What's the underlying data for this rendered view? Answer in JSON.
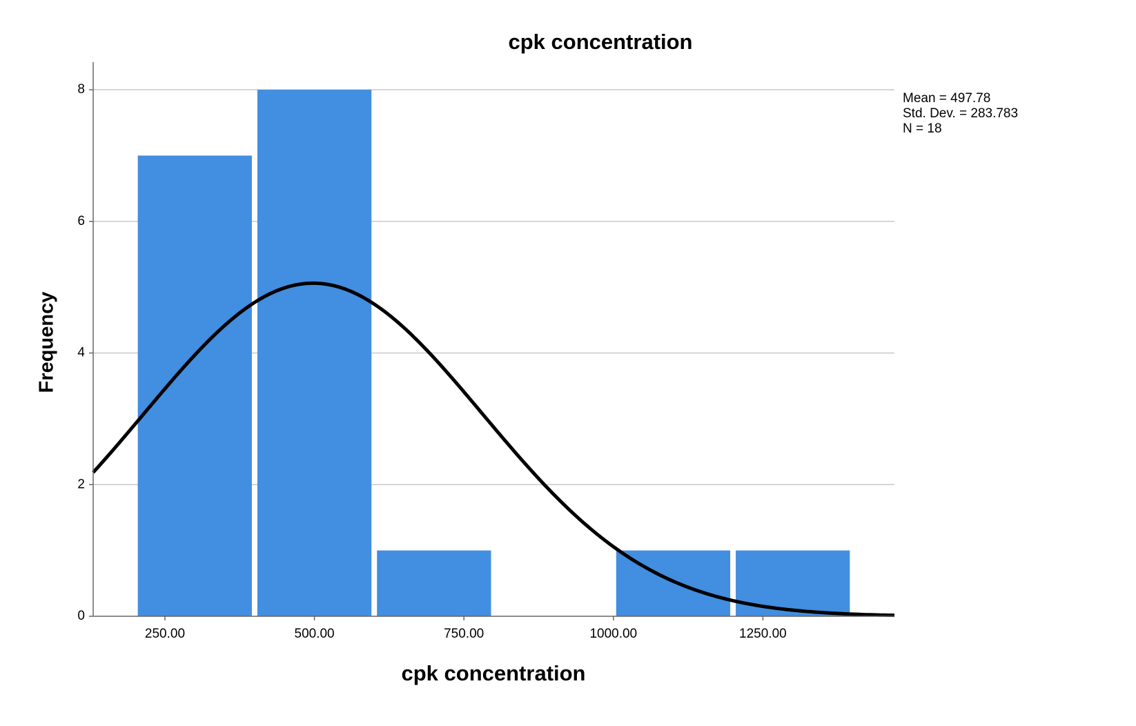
{
  "chart_data": {
    "type": "histogram",
    "title": "cpk concentration",
    "x_label": "cpk concentration",
    "y_label": "Frequency",
    "bins": [
      200,
      400,
      600,
      800,
      1000,
      1200,
      1400
    ],
    "values": [
      7,
      8,
      1,
      0,
      1,
      1
    ],
    "color": "#428ee0",
    "xlim": [
      130,
      1470
    ],
    "xticks": [
      {
        "value": 250,
        "label": "250.00"
      },
      {
        "value": 500,
        "label": "500.00"
      },
      {
        "value": 750,
        "label": "750.00"
      },
      {
        "value": 1000,
        "label": "1000.00"
      },
      {
        "value": 1250,
        "label": "1250.00"
      }
    ],
    "ylim": [
      0,
      8.42
    ],
    "yticks": [
      0,
      2,
      4,
      6,
      8
    ],
    "grid": true,
    "normal_curve": {
      "mean": 497.78,
      "std_dev": 283.783,
      "n": 18,
      "color": "#000000"
    },
    "annotations": [
      "Mean = 497.78",
      "Std. Dev. = 283.783",
      "N = 18"
    ]
  }
}
